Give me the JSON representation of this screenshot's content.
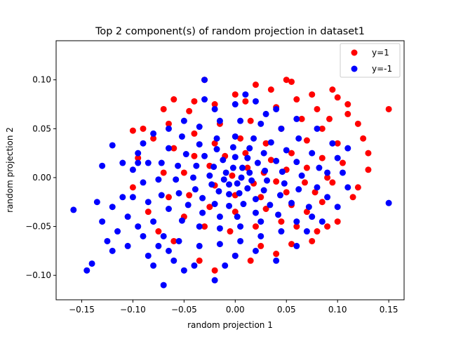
{
  "chart_data": {
    "type": "scatter",
    "title": "Top 2 component(s) of random projection in dataset1",
    "xlabel": "random projection 1",
    "ylabel": "random projection 2",
    "xlim": [
      -0.175,
      0.165
    ],
    "ylim": [
      -0.125,
      0.14
    ],
    "xticks": [
      -0.15,
      -0.1,
      -0.05,
      0.0,
      0.05,
      0.1,
      0.15
    ],
    "xtick_labels": [
      "−0.15",
      "−0.10",
      "−0.05",
      "0.00",
      "0.05",
      "0.10",
      "0.15"
    ],
    "yticks": [
      -0.1,
      -0.05,
      0.0,
      0.05,
      0.1
    ],
    "ytick_labels": [
      "−0.10",
      "−0.05",
      "0.00",
      "0.05",
      "0.10"
    ],
    "grid": false,
    "legend_position": "top-right",
    "series": [
      {
        "name": "y=1",
        "color": "#ff0000",
        "points": [
          [
            -0.1,
            0.048
          ],
          [
            -0.09,
            0.05
          ],
          [
            -0.07,
            0.07
          ],
          [
            -0.06,
            0.08
          ],
          [
            -0.03,
            0.1
          ],
          [
            0.0,
            0.085
          ],
          [
            0.02,
            0.095
          ],
          [
            0.035,
            0.09
          ],
          [
            0.05,
            0.1
          ],
          [
            0.055,
            0.098
          ],
          [
            0.075,
            0.085
          ],
          [
            0.095,
            0.09
          ],
          [
            0.1,
            0.082
          ],
          [
            0.11,
            0.065
          ],
          [
            0.12,
            0.055
          ],
          [
            0.13,
            0.025
          ],
          [
            0.15,
            0.07
          ],
          [
            0.13,
            0.008
          ],
          [
            0.12,
            -0.01
          ],
          [
            0.115,
            -0.02
          ],
          [
            0.1,
            -0.045
          ],
          [
            0.09,
            -0.05
          ],
          [
            0.08,
            -0.055
          ],
          [
            0.075,
            -0.065
          ],
          [
            0.06,
            -0.05
          ],
          [
            0.055,
            -0.068
          ],
          [
            0.04,
            -0.078
          ],
          [
            0.025,
            -0.07
          ],
          [
            0.015,
            -0.085
          ],
          [
            0.0,
            -0.08
          ],
          [
            -0.02,
            -0.095
          ],
          [
            -0.035,
            -0.085
          ],
          [
            -0.06,
            -0.065
          ],
          [
            -0.075,
            -0.055
          ],
          [
            -0.085,
            -0.035
          ],
          [
            -0.1,
            -0.01
          ],
          [
            -0.095,
            0.02
          ],
          [
            -0.08,
            0.04
          ],
          [
            -0.065,
            0.055
          ],
          [
            -0.045,
            0.068
          ],
          [
            -0.02,
            0.075
          ],
          [
            0.01,
            0.078
          ],
          [
            0.04,
            0.072
          ],
          [
            0.065,
            0.06
          ],
          [
            0.085,
            0.05
          ],
          [
            0.1,
            0.035
          ],
          [
            0.105,
            0.015
          ],
          [
            0.095,
            -0.005
          ],
          [
            0.085,
            -0.025
          ],
          [
            0.07,
            -0.035
          ],
          [
            0.045,
            -0.045
          ],
          [
            0.02,
            -0.05
          ],
          [
            -0.005,
            -0.055
          ],
          [
            -0.03,
            -0.05
          ],
          [
            -0.05,
            -0.04
          ],
          [
            -0.065,
            -0.02
          ],
          [
            -0.07,
            0.005
          ],
          [
            -0.06,
            0.03
          ],
          [
            -0.04,
            0.045
          ],
          [
            -0.015,
            0.055
          ],
          [
            0.015,
            0.058
          ],
          [
            0.045,
            0.05
          ],
          [
            0.07,
            0.038
          ],
          [
            0.085,
            0.02
          ],
          [
            0.09,
            0.0
          ],
          [
            0.078,
            -0.015
          ],
          [
            0.055,
            -0.028
          ],
          [
            0.03,
            -0.032
          ],
          [
            0.0,
            -0.035
          ],
          [
            -0.025,
            -0.03
          ],
          [
            -0.045,
            -0.018
          ],
          [
            -0.05,
            0.005
          ],
          [
            -0.04,
            0.022
          ],
          [
            -0.02,
            0.035
          ],
          [
            0.005,
            0.04
          ],
          [
            0.03,
            0.035
          ],
          [
            0.055,
            0.025
          ],
          [
            0.07,
            0.01
          ],
          [
            0.068,
            -0.005
          ],
          [
            0.05,
            -0.015
          ],
          [
            0.025,
            -0.02
          ],
          [
            0.0,
            -0.018
          ],
          [
            -0.02,
            -0.008
          ],
          [
            -0.025,
            0.012
          ],
          [
            -0.01,
            0.022
          ],
          [
            0.01,
            0.025
          ],
          [
            0.035,
            0.018
          ],
          [
            0.05,
            0.008
          ],
          [
            0.04,
            -0.004
          ],
          [
            0.018,
            -0.006
          ],
          [
            -0.003,
            0.002
          ],
          [
            0.012,
            0.01
          ],
          [
            0.028,
            0.005
          ],
          [
            0.125,
            0.04
          ],
          [
            0.11,
            0.075
          ],
          [
            0.06,
            0.08
          ],
          [
            -0.04,
            0.078
          ],
          [
            0.092,
            0.06
          ],
          [
            0.08,
            0.07
          ]
        ]
      },
      {
        "name": "y=-1",
        "color": "#0000ff",
        "points": [
          [
            -0.158,
            -0.033
          ],
          [
            -0.145,
            -0.095
          ],
          [
            -0.14,
            -0.088
          ],
          [
            -0.13,
            0.012
          ],
          [
            -0.12,
            0.033
          ],
          [
            -0.135,
            -0.025
          ],
          [
            -0.13,
            -0.045
          ],
          [
            -0.125,
            -0.065
          ],
          [
            -0.12,
            -0.075
          ],
          [
            -0.115,
            -0.055
          ],
          [
            -0.11,
            -0.02
          ],
          [
            -0.105,
            -0.04
          ],
          [
            -0.1,
            0.008
          ],
          [
            -0.095,
            0.025
          ],
          [
            -0.09,
            -0.06
          ],
          [
            -0.085,
            -0.08
          ],
          [
            -0.08,
            -0.09
          ],
          [
            -0.07,
            -0.11
          ],
          [
            -0.065,
            -0.075
          ],
          [
            -0.06,
            -0.085
          ],
          [
            -0.05,
            -0.095
          ],
          [
            -0.04,
            -0.09
          ],
          [
            -0.02,
            -0.105
          ],
          [
            -0.01,
            -0.09
          ],
          [
            0.0,
            -0.08
          ],
          [
            0.02,
            -0.075
          ],
          [
            0.04,
            -0.085
          ],
          [
            0.06,
            -0.07
          ],
          [
            0.075,
            -0.04
          ],
          [
            0.09,
            -0.02
          ],
          [
            0.1,
            -0.03
          ],
          [
            0.15,
            -0.026
          ],
          [
            0.11,
            -0.01
          ],
          [
            0.105,
            0.005
          ],
          [
            0.1,
            0.02
          ],
          [
            0.095,
            0.035
          ],
          [
            0.08,
            0.05
          ],
          [
            0.06,
            0.06
          ],
          [
            0.04,
            0.07
          ],
          [
            0.02,
            0.078
          ],
          [
            0.0,
            0.075
          ],
          [
            -0.02,
            0.07
          ],
          [
            -0.03,
            0.08
          ],
          [
            -0.05,
            0.058
          ],
          [
            -0.065,
            0.05
          ],
          [
            -0.08,
            0.045
          ],
          [
            -0.09,
            0.035
          ],
          [
            -0.095,
            0.015
          ],
          [
            -0.09,
            -0.005
          ],
          [
            -0.085,
            -0.025
          ],
          [
            -0.08,
            -0.045
          ],
          [
            -0.07,
            -0.06
          ],
          [
            -0.055,
            -0.065
          ],
          [
            -0.035,
            -0.07
          ],
          [
            -0.015,
            -0.068
          ],
          [
            0.005,
            -0.065
          ],
          [
            0.025,
            -0.06
          ],
          [
            0.045,
            -0.055
          ],
          [
            0.06,
            -0.045
          ],
          [
            0.072,
            -0.03
          ],
          [
            0.08,
            -0.01
          ],
          [
            0.082,
            0.01
          ],
          [
            0.075,
            0.025
          ],
          [
            0.062,
            0.04
          ],
          [
            0.045,
            0.05
          ],
          [
            0.025,
            0.055
          ],
          [
            0.005,
            0.058
          ],
          [
            -0.015,
            0.058
          ],
          [
            -0.035,
            0.052
          ],
          [
            -0.052,
            0.042
          ],
          [
            -0.065,
            0.03
          ],
          [
            -0.072,
            0.015
          ],
          [
            -0.075,
            -0.002
          ],
          [
            -0.072,
            -0.018
          ],
          [
            -0.065,
            -0.032
          ],
          [
            -0.052,
            -0.044
          ],
          [
            -0.035,
            -0.05
          ],
          [
            -0.015,
            -0.052
          ],
          [
            0.005,
            -0.05
          ],
          [
            0.025,
            -0.045
          ],
          [
            0.042,
            -0.038
          ],
          [
            0.055,
            -0.026
          ],
          [
            0.062,
            -0.012
          ],
          [
            0.065,
            0.002
          ],
          [
            0.06,
            0.016
          ],
          [
            0.05,
            0.028
          ],
          [
            0.035,
            0.036
          ],
          [
            0.018,
            0.04
          ],
          [
            0.0,
            0.042
          ],
          [
            -0.018,
            0.04
          ],
          [
            -0.035,
            0.034
          ],
          [
            -0.048,
            0.024
          ],
          [
            -0.056,
            0.012
          ],
          [
            -0.058,
            -0.002
          ],
          [
            -0.055,
            -0.016
          ],
          [
            -0.046,
            -0.028
          ],
          [
            -0.032,
            -0.036
          ],
          [
            -0.015,
            -0.04
          ],
          [
            0.002,
            -0.04
          ],
          [
            0.02,
            -0.036
          ],
          [
            0.034,
            -0.028
          ],
          [
            0.044,
            -0.018
          ],
          [
            0.048,
            -0.006
          ],
          [
            0.046,
            0.006
          ],
          [
            0.04,
            0.017
          ],
          [
            0.028,
            0.025
          ],
          [
            0.014,
            0.03
          ],
          [
            -0.002,
            0.031
          ],
          [
            -0.018,
            0.029
          ],
          [
            -0.03,
            0.022
          ],
          [
            -0.038,
            0.012
          ],
          [
            -0.041,
            0.0
          ],
          [
            -0.039,
            -0.012
          ],
          [
            -0.032,
            -0.021
          ],
          [
            -0.02,
            -0.027
          ],
          [
            -0.006,
            -0.029
          ],
          [
            0.008,
            -0.027
          ],
          [
            0.02,
            -0.022
          ],
          [
            0.028,
            -0.013
          ],
          [
            0.031,
            -0.003
          ],
          [
            0.029,
            0.007
          ],
          [
            0.022,
            0.015
          ],
          [
            0.012,
            0.02
          ],
          [
            0.0,
            0.021
          ],
          [
            -0.012,
            0.018
          ],
          [
            -0.021,
            0.011
          ],
          [
            -0.025,
            0.002
          ],
          [
            -0.023,
            -0.007
          ],
          [
            -0.016,
            -0.014
          ],
          [
            -0.006,
            -0.017
          ],
          [
            0.004,
            -0.016
          ],
          [
            0.012,
            -0.011
          ],
          [
            0.016,
            -0.003
          ],
          [
            0.014,
            0.005
          ],
          [
            0.007,
            0.01
          ],
          [
            -0.002,
            0.01
          ],
          [
            -0.009,
            0.005
          ],
          [
            -0.011,
            -0.002
          ],
          [
            -0.006,
            -0.007
          ],
          [
            0.002,
            -0.006
          ],
          [
            0.006,
            0.0
          ],
          [
            -0.12,
            -0.03
          ],
          [
            -0.105,
            -0.07
          ],
          [
            -0.095,
            -0.05
          ],
          [
            -0.11,
            0.015
          ],
          [
            -0.085,
            0.015
          ],
          [
            -0.1,
            -0.02
          ],
          [
            -0.075,
            -0.07
          ],
          [
            0.07,
            -0.055
          ],
          [
            0.085,
            -0.045
          ],
          [
            0.09,
            0.005
          ],
          [
            0.11,
            0.03
          ],
          [
            -0.03,
            0.1
          ],
          [
            0.01,
            0.085
          ],
          [
            0.03,
            0.065
          ]
        ]
      }
    ]
  }
}
